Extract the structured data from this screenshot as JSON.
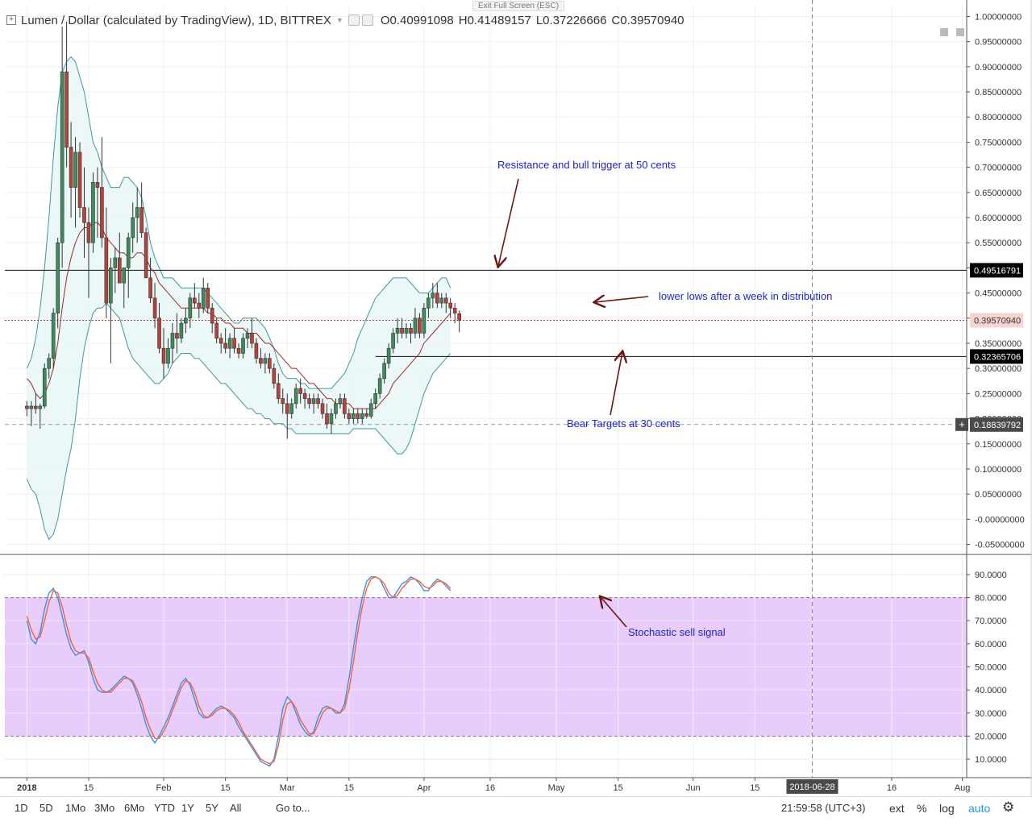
{
  "header": {
    "title": "Lumen / Dollar (calculated by TradingView), 1D, BITTREX",
    "open_label": "O",
    "open": "0.40991098",
    "high_label": "H",
    "high": "0.41489157",
    "low_label": "L",
    "low": "0.37226666",
    "close_label": "C",
    "close": "0.39570940",
    "exit_fullscreen": "Exit Full Screen (ESC)"
  },
  "colors": {
    "up": "#3c8c5c",
    "down": "#b7413b",
    "band_line": "#3e9a9a",
    "band_fill": "#eaf6f6",
    "ma": "#9c2b2b",
    "stoch_k": "#3f8fe0",
    "stoch_d": "#f0643c",
    "stoch_zone": "#e8ccfc",
    "annotation": "#1f23c9",
    "arrow": "#6b1414"
  },
  "chart_data": [
    {
      "type": "candlestick",
      "name": "price",
      "ylim": [
        -0.07,
        1.02
      ],
      "y_ticks": [
        "1.00000000",
        "0.95000000",
        "0.90000000",
        "0.85000000",
        "0.80000000",
        "0.75000000",
        "0.70000000",
        "0.65000000",
        "0.60000000",
        "0.55000000",
        "0.50000000",
        "0.45000000",
        "0.40000000",
        "0.35000000",
        "0.30000000",
        "0.25000000",
        "0.20000000",
        "0.15000000",
        "0.10000000",
        "0.05000000",
        "-0.00000000",
        "-0.05000000"
      ],
      "y_tick_values": [
        1.0,
        0.95,
        0.9,
        0.85,
        0.8,
        0.75,
        0.7,
        0.65,
        0.6,
        0.55,
        0.5,
        0.45,
        0.4,
        0.35,
        0.3,
        0.25,
        0.2,
        0.15,
        0.1,
        0.05,
        0.0,
        -0.05
      ],
      "x_ticks": [
        "2018",
        "15",
        "Feb",
        "15",
        "Mar",
        "15",
        "Apr",
        "16",
        "May",
        "15",
        "Jun",
        "15",
        "2018-06-28",
        "16",
        "Aug"
      ],
      "x_tick_days": [
        0,
        14,
        31,
        45,
        59,
        73,
        90,
        105,
        120,
        134,
        151,
        165,
        178,
        196,
        212
      ],
      "x_range_days": [
        -5,
        213
      ],
      "candles_ohlc": [
        [
          0.225,
          0.235,
          0.205,
          0.22
        ],
        [
          0.22,
          0.235,
          0.185,
          0.225
        ],
        [
          0.225,
          0.25,
          0.21,
          0.22
        ],
        [
          0.22,
          0.23,
          0.18,
          0.225
        ],
        [
          0.225,
          0.31,
          0.22,
          0.3
        ],
        [
          0.3,
          0.33,
          0.28,
          0.32
        ],
        [
          0.32,
          0.42,
          0.3,
          0.41
        ],
        [
          0.41,
          0.56,
          0.38,
          0.55
        ],
        [
          0.55,
          0.98,
          0.5,
          0.89
        ],
        [
          0.89,
          0.99,
          0.7,
          0.74
        ],
        [
          0.74,
          0.79,
          0.6,
          0.66
        ],
        [
          0.66,
          0.76,
          0.58,
          0.73
        ],
        [
          0.73,
          0.75,
          0.6,
          0.62
        ],
        [
          0.62,
          0.7,
          0.52,
          0.59
        ],
        [
          0.59,
          0.62,
          0.44,
          0.55
        ],
        [
          0.55,
          0.69,
          0.53,
          0.67
        ],
        [
          0.67,
          0.7,
          0.56,
          0.66
        ],
        [
          0.66,
          0.76,
          0.54,
          0.56
        ],
        [
          0.56,
          0.62,
          0.4,
          0.43
        ],
        [
          0.43,
          0.52,
          0.31,
          0.5
        ],
        [
          0.5,
          0.54,
          0.45,
          0.52
        ],
        [
          0.52,
          0.57,
          0.48,
          0.47
        ],
        [
          0.47,
          0.5,
          0.42,
          0.5
        ],
        [
          0.5,
          0.57,
          0.44,
          0.56
        ],
        [
          0.56,
          0.63,
          0.53,
          0.6
        ],
        [
          0.6,
          0.66,
          0.55,
          0.62
        ],
        [
          0.62,
          0.67,
          0.56,
          0.57
        ],
        [
          0.57,
          0.58,
          0.48,
          0.48
        ],
        [
          0.48,
          0.52,
          0.43,
          0.44
        ],
        [
          0.44,
          0.47,
          0.38,
          0.4
        ],
        [
          0.4,
          0.43,
          0.33,
          0.34
        ],
        [
          0.34,
          0.38,
          0.28,
          0.31
        ],
        [
          0.31,
          0.36,
          0.3,
          0.34
        ],
        [
          0.34,
          0.39,
          0.31,
          0.37
        ],
        [
          0.37,
          0.41,
          0.33,
          0.36
        ],
        [
          0.36,
          0.4,
          0.35,
          0.39
        ],
        [
          0.39,
          0.42,
          0.37,
          0.4
        ],
        [
          0.4,
          0.45,
          0.38,
          0.44
        ],
        [
          0.44,
          0.47,
          0.42,
          0.43
        ],
        [
          0.43,
          0.45,
          0.4,
          0.42
        ],
        [
          0.42,
          0.48,
          0.41,
          0.46
        ],
        [
          0.46,
          0.47,
          0.41,
          0.42
        ],
        [
          0.42,
          0.43,
          0.37,
          0.39
        ],
        [
          0.39,
          0.4,
          0.35,
          0.36
        ],
        [
          0.36,
          0.37,
          0.33,
          0.35
        ],
        [
          0.35,
          0.38,
          0.33,
          0.34
        ],
        [
          0.34,
          0.37,
          0.32,
          0.36
        ],
        [
          0.36,
          0.38,
          0.33,
          0.34
        ],
        [
          0.34,
          0.35,
          0.32,
          0.33
        ],
        [
          0.33,
          0.37,
          0.32,
          0.36
        ],
        [
          0.36,
          0.38,
          0.34,
          0.37
        ],
        [
          0.37,
          0.4,
          0.34,
          0.35
        ],
        [
          0.35,
          0.36,
          0.31,
          0.32
        ],
        [
          0.32,
          0.34,
          0.3,
          0.31
        ],
        [
          0.31,
          0.33,
          0.29,
          0.32
        ],
        [
          0.32,
          0.33,
          0.29,
          0.3
        ],
        [
          0.3,
          0.31,
          0.26,
          0.27
        ],
        [
          0.27,
          0.29,
          0.23,
          0.24
        ],
        [
          0.24,
          0.26,
          0.21,
          0.23
        ],
        [
          0.23,
          0.25,
          0.16,
          0.21
        ],
        [
          0.21,
          0.24,
          0.2,
          0.23
        ],
        [
          0.23,
          0.27,
          0.22,
          0.26
        ],
        [
          0.26,
          0.28,
          0.23,
          0.25
        ],
        [
          0.25,
          0.26,
          0.22,
          0.24
        ],
        [
          0.24,
          0.25,
          0.22,
          0.23
        ],
        [
          0.23,
          0.25,
          0.21,
          0.24
        ],
        [
          0.24,
          0.25,
          0.22,
          0.23
        ],
        [
          0.23,
          0.24,
          0.2,
          0.21
        ],
        [
          0.21,
          0.23,
          0.18,
          0.19
        ],
        [
          0.19,
          0.22,
          0.17,
          0.21
        ],
        [
          0.21,
          0.24,
          0.2,
          0.23
        ],
        [
          0.23,
          0.25,
          0.22,
          0.24
        ],
        [
          0.24,
          0.25,
          0.2,
          0.21
        ],
        [
          0.21,
          0.22,
          0.19,
          0.2
        ],
        [
          0.2,
          0.22,
          0.19,
          0.21
        ],
        [
          0.21,
          0.22,
          0.19,
          0.2
        ],
        [
          0.2,
          0.22,
          0.19,
          0.21
        ],
        [
          0.21,
          0.22,
          0.2,
          0.205
        ],
        [
          0.205,
          0.24,
          0.2,
          0.23
        ],
        [
          0.23,
          0.26,
          0.22,
          0.25
        ],
        [
          0.25,
          0.29,
          0.24,
          0.28
        ],
        [
          0.28,
          0.32,
          0.27,
          0.31
        ],
        [
          0.31,
          0.35,
          0.3,
          0.34
        ],
        [
          0.34,
          0.38,
          0.33,
          0.37
        ],
        [
          0.37,
          0.4,
          0.35,
          0.38
        ],
        [
          0.38,
          0.4,
          0.36,
          0.37
        ],
        [
          0.37,
          0.39,
          0.36,
          0.38
        ],
        [
          0.38,
          0.39,
          0.35,
          0.37
        ],
        [
          0.37,
          0.42,
          0.36,
          0.4
        ],
        [
          0.4,
          0.41,
          0.36,
          0.37
        ],
        [
          0.37,
          0.43,
          0.36,
          0.42
        ],
        [
          0.42,
          0.45,
          0.4,
          0.44
        ],
        [
          0.44,
          0.47,
          0.42,
          0.45
        ],
        [
          0.45,
          0.47,
          0.42,
          0.43
        ],
        [
          0.43,
          0.45,
          0.42,
          0.44
        ],
        [
          0.44,
          0.45,
          0.41,
          0.43
        ],
        [
          0.43,
          0.44,
          0.4,
          0.42
        ],
        [
          0.42,
          0.43,
          0.39,
          0.41
        ],
        [
          0.409,
          0.415,
          0.372,
          0.396
        ]
      ],
      "middle_band": [
        0.28,
        0.27,
        0.25,
        0.24,
        0.25,
        0.27,
        0.3,
        0.35,
        0.42,
        0.48,
        0.52,
        0.55,
        0.57,
        0.58,
        0.58,
        0.59,
        0.59,
        0.58,
        0.56,
        0.55,
        0.54,
        0.53,
        0.53,
        0.52,
        0.52,
        0.53,
        0.53,
        0.52,
        0.5,
        0.49,
        0.47,
        0.46,
        0.45,
        0.44,
        0.43,
        0.42,
        0.42,
        0.42,
        0.42,
        0.42,
        0.42,
        0.41,
        0.41,
        0.4,
        0.4,
        0.39,
        0.39,
        0.38,
        0.38,
        0.38,
        0.37,
        0.37,
        0.37,
        0.36,
        0.35,
        0.35,
        0.34,
        0.33,
        0.32,
        0.31,
        0.3,
        0.3,
        0.29,
        0.28,
        0.27,
        0.27,
        0.26,
        0.25,
        0.24,
        0.24,
        0.23,
        0.23,
        0.23,
        0.23,
        0.22,
        0.22,
        0.22,
        0.22,
        0.22,
        0.22,
        0.23,
        0.24,
        0.25,
        0.27,
        0.28,
        0.29,
        0.3,
        0.31,
        0.32,
        0.33,
        0.35,
        0.36,
        0.37,
        0.38,
        0.39,
        0.4,
        0.41
      ],
      "upper_band": [
        0.3,
        0.32,
        0.36,
        0.42,
        0.5,
        0.6,
        0.72,
        0.82,
        0.89,
        0.91,
        0.92,
        0.91,
        0.88,
        0.85,
        0.8,
        0.75,
        0.73,
        0.7,
        0.68,
        0.66,
        0.66,
        0.66,
        0.68,
        0.68,
        0.67,
        0.66,
        0.64,
        0.6,
        0.55,
        0.52,
        0.5,
        0.48,
        0.48,
        0.48,
        0.47,
        0.46,
        0.46,
        0.46,
        0.46,
        0.46,
        0.46,
        0.45,
        0.44,
        0.43,
        0.42,
        0.41,
        0.4,
        0.39,
        0.39,
        0.4,
        0.4,
        0.4,
        0.4,
        0.39,
        0.38,
        0.36,
        0.34,
        0.31,
        0.29,
        0.28,
        0.28,
        0.28,
        0.27,
        0.27,
        0.26,
        0.26,
        0.26,
        0.26,
        0.26,
        0.26,
        0.27,
        0.28,
        0.29,
        0.31,
        0.33,
        0.36,
        0.38,
        0.4,
        0.42,
        0.44,
        0.45,
        0.46,
        0.47,
        0.48,
        0.48,
        0.48,
        0.48,
        0.47,
        0.46,
        0.45,
        0.45,
        0.45,
        0.46,
        0.47,
        0.48,
        0.48,
        0.46
      ],
      "lower_band": [
        0.08,
        0.06,
        0.05,
        0.02,
        -0.02,
        -0.04,
        -0.03,
        0.0,
        0.05,
        0.1,
        0.14,
        0.2,
        0.28,
        0.34,
        0.38,
        0.41,
        0.42,
        0.42,
        0.43,
        0.42,
        0.41,
        0.4,
        0.37,
        0.34,
        0.32,
        0.31,
        0.3,
        0.29,
        0.28,
        0.27,
        0.27,
        0.28,
        0.29,
        0.31,
        0.32,
        0.33,
        0.33,
        0.33,
        0.32,
        0.32,
        0.31,
        0.3,
        0.29,
        0.28,
        0.27,
        0.27,
        0.26,
        0.25,
        0.24,
        0.23,
        0.22,
        0.22,
        0.21,
        0.21,
        0.2,
        0.2,
        0.19,
        0.19,
        0.19,
        0.18,
        0.18,
        0.17,
        0.17,
        0.17,
        0.17,
        0.17,
        0.17,
        0.17,
        0.17,
        0.17,
        0.17,
        0.17,
        0.17,
        0.17,
        0.18,
        0.18,
        0.18,
        0.18,
        0.18,
        0.18,
        0.17,
        0.16,
        0.15,
        0.14,
        0.13,
        0.13,
        0.14,
        0.16,
        0.19,
        0.22,
        0.25,
        0.27,
        0.29,
        0.3,
        0.31,
        0.32,
        0.33
      ],
      "levels": [
        {
          "value": 0.49516791,
          "label": "0.49516791",
          "style": "solid",
          "x_from_day": -5
        },
        {
          "value": 0.3957094,
          "label": "0.39570940",
          "style": "dotted",
          "x_from_day": -5
        },
        {
          "value": 0.32365706,
          "label": "0.32365706",
          "style": "solid",
          "x_from_day": 79
        },
        {
          "value": 0.18839792,
          "label": "0.18839792",
          "style": "dashed",
          "x_from_day": -5
        }
      ],
      "annotations": [
        {
          "text": "Resistance and bull trigger at 50 cents"
        },
        {
          "text": "lower lows after a week in distribution"
        },
        {
          "text": "Bear Targets at 30 cents"
        }
      ]
    },
    {
      "type": "line",
      "name": "stochastic",
      "ylim": [
        2,
        98
      ],
      "y_ticks": [
        "90.0000",
        "80.0000",
        "70.0000",
        "60.0000",
        "50.0000",
        "40.0000",
        "30.0000",
        "20.0000",
        "10.0000"
      ],
      "y_tick_values": [
        90,
        80,
        70,
        60,
        50,
        40,
        30,
        20,
        10
      ],
      "zone": [
        20,
        80
      ],
      "series": [
        {
          "key": "k",
          "values": [
            70,
            62,
            60,
            65,
            75,
            82,
            84,
            80,
            72,
            64,
            58,
            55,
            56,
            57,
            52,
            45,
            40,
            39,
            39,
            40,
            42,
            44,
            46,
            45,
            43,
            38,
            32,
            25,
            20,
            17,
            20,
            24,
            28,
            33,
            38,
            43,
            45,
            42,
            36,
            30,
            28,
            28,
            30,
            32,
            33,
            32,
            30,
            28,
            24,
            21,
            18,
            15,
            12,
            9,
            8,
            7,
            10,
            20,
            32,
            37,
            35,
            30,
            25,
            22,
            20,
            22,
            28,
            32,
            33,
            32,
            30,
            30,
            34,
            45,
            58,
            70,
            80,
            87,
            89,
            89,
            88,
            84,
            80,
            80,
            83,
            86,
            87,
            89,
            88,
            86,
            83,
            83,
            86,
            88,
            87,
            85,
            83
          ]
        },
        {
          "key": "d",
          "values": [
            72,
            66,
            62,
            63,
            70,
            78,
            83,
            82,
            76,
            68,
            61,
            57,
            56,
            56,
            54,
            48,
            43,
            40,
            39,
            39,
            41,
            43,
            45,
            45,
            44,
            40,
            35,
            28,
            23,
            19,
            19,
            22,
            26,
            31,
            36,
            41,
            44,
            43,
            39,
            33,
            29,
            28,
            29,
            31,
            32,
            32,
            31,
            29,
            26,
            22,
            19,
            16,
            13,
            10,
            9,
            8,
            9,
            16,
            27,
            34,
            35,
            32,
            27,
            24,
            21,
            21,
            25,
            30,
            32,
            32,
            31,
            30,
            32,
            40,
            52,
            65,
            76,
            84,
            88,
            89,
            88,
            86,
            82,
            80,
            81,
            84,
            86,
            88,
            88,
            87,
            85,
            84,
            85,
            87,
            87,
            86,
            84
          ]
        }
      ],
      "annotation": {
        "text": "Stochastic sell signal"
      }
    }
  ],
  "crosshair": {
    "date_label": "2018-06-28",
    "price_label": "0.18839792"
  },
  "toolbar": {
    "timeframes": [
      "1D",
      "5D",
      "1Mo",
      "3Mo",
      "6Mo",
      "YTD",
      "1Y",
      "5Y",
      "All"
    ],
    "goto": "Go to...",
    "clock": "21:59:58 (UTC+3)",
    "ext": "ext",
    "percent": "%",
    "log": "log",
    "auto": "auto"
  }
}
